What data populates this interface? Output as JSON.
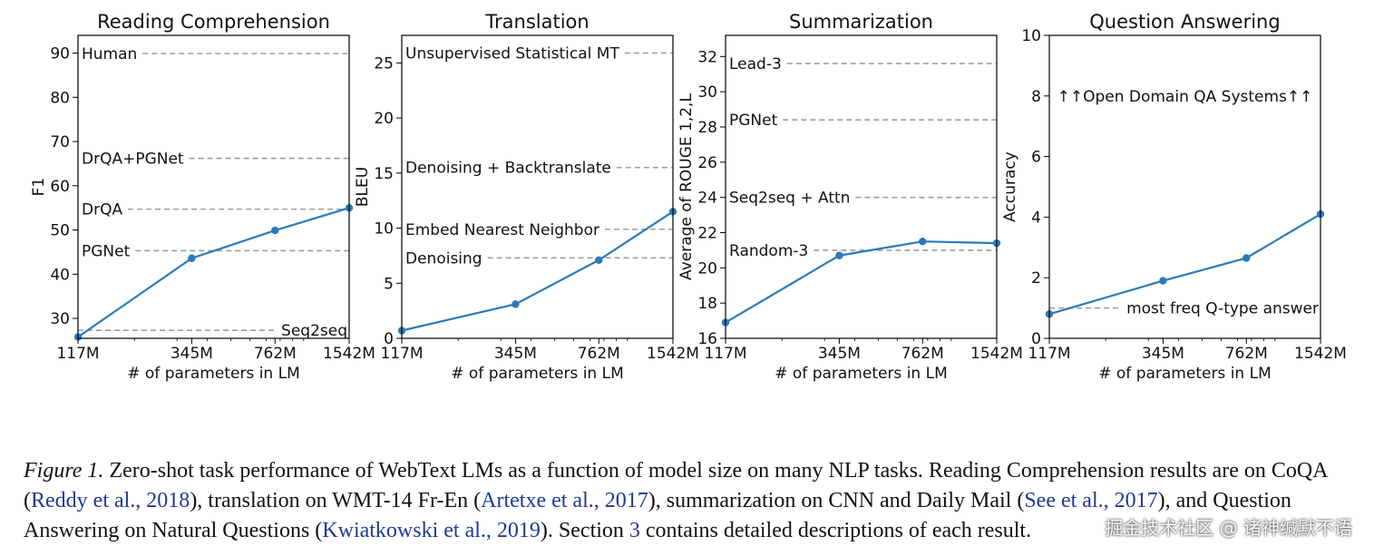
{
  "chart_data": [
    {
      "type": "line",
      "title": "Reading Comprehension",
      "xlabel": "# of parameters in LM",
      "ylabel": "F1",
      "categories": [
        "117M",
        "345M",
        "762M",
        "1542M"
      ],
      "x": [
        117,
        345,
        762,
        1542
      ],
      "values": [
        25.8,
        43.6,
        49.9,
        55.0
      ],
      "ylim": [
        25.5,
        94
      ],
      "yticks": [
        30,
        40,
        50,
        60,
        70,
        80,
        90
      ],
      "references": [
        {
          "label": "Human",
          "value": 89.9,
          "align": "left"
        },
        {
          "label": "DrQA+PGNet",
          "value": 66.2,
          "align": "left"
        },
        {
          "label": "DrQA",
          "value": 54.7,
          "align": "left"
        },
        {
          "label": "PGNet",
          "value": 45.3,
          "align": "left"
        },
        {
          "label": "Seq2seq",
          "value": 27.3,
          "align": "right"
        }
      ]
    },
    {
      "type": "line",
      "title": "Translation",
      "xlabel": "# of parameters in LM",
      "ylabel": "BLEU",
      "categories": [
        "117M",
        "345M",
        "762M",
        "1542M"
      ],
      "x": [
        117,
        345,
        762,
        1542
      ],
      "values": [
        0.7,
        3.1,
        7.1,
        11.5
      ],
      "ylim": [
        0,
        27.5
      ],
      "yticks": [
        0,
        5,
        10,
        15,
        20,
        25
      ],
      "references": [
        {
          "label": "Unsupervised Statistical MT",
          "value": 25.9,
          "align": "left"
        },
        {
          "label": "Denoising + Backtranslate",
          "value": 15.5,
          "align": "left"
        },
        {
          "label": "Embed Nearest Neighbor",
          "value": 9.9,
          "align": "left"
        },
        {
          "label": "Denoising",
          "value": 7.3,
          "align": "left"
        }
      ]
    },
    {
      "type": "line",
      "title": "Summarization",
      "xlabel": "# of parameters in LM",
      "ylabel": "Average of ROUGE 1,2,L",
      "categories": [
        "117M",
        "345M",
        "762M",
        "1542M"
      ],
      "x": [
        117,
        345,
        762,
        1542
      ],
      "values": [
        16.9,
        20.7,
        21.5,
        21.4
      ],
      "ylim": [
        16,
        33.2
      ],
      "yticks": [
        16,
        18,
        20,
        22,
        24,
        26,
        28,
        30,
        32
      ],
      "references": [
        {
          "label": "Lead-3",
          "value": 31.6,
          "align": "left"
        },
        {
          "label": "PGNet",
          "value": 28.4,
          "align": "left"
        },
        {
          "label": "Seq2seq + Attn",
          "value": 24.0,
          "align": "left"
        },
        {
          "label": "Random-3",
          "value": 21.0,
          "align": "left"
        }
      ]
    },
    {
      "type": "line",
      "title": "Question Answering",
      "xlabel": "# of parameters in LM",
      "ylabel": "Accuracy",
      "categories": [
        "117M",
        "345M",
        "762M",
        "1542M"
      ],
      "x": [
        117,
        345,
        762,
        1542
      ],
      "values": [
        0.8,
        1.9,
        2.65,
        4.1
      ],
      "ylim": [
        0,
        10
      ],
      "yticks": [
        0,
        2,
        4,
        6,
        8,
        10
      ],
      "references": [
        {
          "label": "↑↑Open Domain QA Systems↑↑",
          "value": 8.0,
          "align": "center",
          "noline": true
        },
        {
          "label": "most freq Q-type answer",
          "value": 1.0,
          "align": "right"
        }
      ]
    }
  ],
  "caption": {
    "figure_label": "Figure 1.",
    "text_1": " Zero-shot task performance of WebText LMs as a function of model size on many NLP tasks. Reading Comprehension results are on CoQA (",
    "cite_1": "Reddy et al., 2018",
    "text_2": "), translation on WMT-14 Fr-En (",
    "cite_2": "Artetxe et al., 2017",
    "text_3": "), summarization on CNN and Daily Mail (",
    "cite_3": "See et al., 2017",
    "text_4": "), and Question Answering on Natural Questions (",
    "cite_4": "Kwiatkowski et al., 2019",
    "text_5": "). Section ",
    "section_ref": "3",
    "text_6": " contains detailed descriptions of each result."
  },
  "watermark": "掘金技术社区 @ 诸神缄默不语",
  "colors": {
    "line": "#2b7bb9",
    "reference": "#9e9e9e",
    "text": "#111111",
    "cite": "#1f3a93"
  }
}
